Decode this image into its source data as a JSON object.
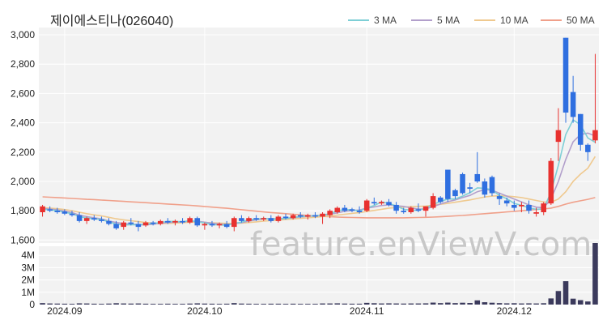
{
  "title": "제이에스티나(026040)",
  "watermark": "feature.enViewV.com",
  "legend": [
    {
      "label": "3 MA",
      "color": "#7ecfd6"
    },
    {
      "label": "5 MA",
      "color": "#b29fcb"
    },
    {
      "label": "10 MA",
      "color": "#efc98f"
    },
    {
      "label": "50 MA",
      "color": "#f0a08a"
    }
  ],
  "chart_data": {
    "type": "candlestick",
    "price_axis": {
      "ylim": [
        1580,
        3050
      ],
      "ticks": [
        1600,
        1800,
        2000,
        2200,
        2400,
        2600,
        2800,
        3000
      ],
      "tick_labels": [
        "1,600",
        "1,800",
        "2,000",
        "2,200",
        "2,400",
        "2,600",
        "2,800",
        "3,000"
      ]
    },
    "volume_axis": {
      "ylim": [
        0,
        5000000
      ],
      "ticks": [
        0,
        1000000,
        2000000,
        3000000,
        4000000
      ],
      "tick_labels": [
        "0",
        "1M",
        "2M",
        "3M",
        "4M"
      ]
    },
    "x_tick_labels": [
      {
        "label": "2024.09",
        "index": 3
      },
      {
        "label": "2024.10",
        "index": 22
      },
      {
        "label": "2024.11",
        "index": 44
      },
      {
        "label": "2024.12",
        "index": 64
      }
    ],
    "ohlc": [
      [
        1790,
        1840,
        1760,
        1830
      ],
      [
        1810,
        1830,
        1790,
        1800
      ],
      [
        1800,
        1820,
        1780,
        1790
      ],
      [
        1795,
        1810,
        1770,
        1780
      ],
      [
        1780,
        1800,
        1760,
        1770
      ],
      [
        1770,
        1790,
        1720,
        1730
      ],
      [
        1730,
        1760,
        1710,
        1750
      ],
      [
        1750,
        1770,
        1730,
        1740
      ],
      [
        1740,
        1760,
        1720,
        1730
      ],
      [
        1730,
        1750,
        1700,
        1710
      ],
      [
        1710,
        1730,
        1670,
        1680
      ],
      [
        1690,
        1730,
        1670,
        1720
      ],
      [
        1720,
        1750,
        1700,
        1710
      ],
      [
        1710,
        1730,
        1660,
        1690
      ],
      [
        1700,
        1730,
        1690,
        1720
      ],
      [
        1720,
        1730,
        1700,
        1710
      ],
      [
        1710,
        1740,
        1700,
        1730
      ],
      [
        1730,
        1750,
        1710,
        1720
      ],
      [
        1720,
        1740,
        1700,
        1730
      ],
      [
        1730,
        1750,
        1710,
        1720
      ],
      [
        1720,
        1760,
        1710,
        1750
      ],
      [
        1750,
        1760,
        1690,
        1700
      ],
      [
        1700,
        1720,
        1670,
        1710
      ],
      [
        1710,
        1730,
        1690,
        1700
      ],
      [
        1700,
        1720,
        1680,
        1710
      ],
      [
        1710,
        1730,
        1680,
        1690
      ],
      [
        1690,
        1760,
        1660,
        1750
      ],
      [
        1750,
        1770,
        1720,
        1730
      ],
      [
        1730,
        1760,
        1720,
        1750
      ],
      [
        1750,
        1770,
        1730,
        1740
      ],
      [
        1740,
        1760,
        1730,
        1750
      ],
      [
        1750,
        1770,
        1720,
        1730
      ],
      [
        1730,
        1770,
        1720,
        1760
      ],
      [
        1760,
        1780,
        1740,
        1750
      ],
      [
        1750,
        1780,
        1740,
        1770
      ],
      [
        1770,
        1790,
        1750,
        1760
      ],
      [
        1760,
        1780,
        1740,
        1770
      ],
      [
        1770,
        1790,
        1750,
        1760
      ],
      [
        1760,
        1790,
        1710,
        1780
      ],
      [
        1770,
        1810,
        1750,
        1800
      ],
      [
        1790,
        1830,
        1780,
        1820
      ],
      [
        1820,
        1840,
        1790,
        1800
      ],
      [
        1810,
        1820,
        1790,
        1800
      ],
      [
        1800,
        1830,
        1780,
        1790
      ],
      [
        1800,
        1880,
        1790,
        1870
      ],
      [
        1860,
        1890,
        1840,
        1850
      ],
      [
        1850,
        1870,
        1840,
        1860
      ],
      [
        1860,
        1880,
        1830,
        1840
      ],
      [
        1840,
        1860,
        1780,
        1800
      ],
      [
        1800,
        1820,
        1780,
        1790
      ],
      [
        1790,
        1830,
        1780,
        1820
      ],
      [
        1810,
        1850,
        1790,
        1800
      ],
      [
        1800,
        1830,
        1760,
        1830
      ],
      [
        1820,
        1920,
        1810,
        1900
      ],
      [
        1890,
        1900,
        1850,
        1860
      ],
      [
        2080,
        2080,
        1860,
        1880
      ],
      [
        1940,
        1950,
        1880,
        1900
      ],
      [
        2050,
        2060,
        1910,
        1920
      ],
      [
        1960,
        1990,
        1920,
        1950
      ],
      [
        2050,
        2200,
        1990,
        2000
      ],
      [
        2000,
        2020,
        1890,
        1910
      ],
      [
        2030,
        2040,
        1900,
        1920
      ],
      [
        1900,
        1920,
        1840,
        1880
      ],
      [
        1870,
        1890,
        1830,
        1850
      ],
      [
        1840,
        1870,
        1800,
        1820
      ],
      [
        1830,
        1860,
        1790,
        1840
      ],
      [
        1840,
        1870,
        1780,
        1800
      ],
      [
        1780,
        1820,
        1760,
        1790
      ],
      [
        1790,
        1860,
        1770,
        1850
      ],
      [
        1850,
        2160,
        1840,
        2140
      ],
      [
        2270,
        2500,
        2140,
        2350
      ],
      [
        2980,
        2980,
        2400,
        2470
      ],
      [
        2610,
        2720,
        2400,
        2440
      ],
      [
        2460,
        2460,
        2210,
        2250
      ],
      [
        2250,
        2260,
        2140,
        2200
      ],
      [
        2280,
        2870,
        2260,
        2350
      ]
    ],
    "ma3": [
      1810,
      1806,
      1800,
      1790,
      1780,
      1760,
      1750,
      1745,
      1740,
      1725,
      1708,
      1703,
      1705,
      1705,
      1708,
      1712,
      1720,
      1727,
      1727,
      1725,
      1733,
      1725,
      1718,
      1705,
      1705,
      1700,
      1715,
      1722,
      1740,
      1742,
      1748,
      1742,
      1745,
      1746,
      1756,
      1760,
      1765,
      1765,
      1770,
      1780,
      1800,
      1807,
      1807,
      1797,
      1820,
      1836,
      1860,
      1850,
      1833,
      1810,
      1803,
      1803,
      1817,
      1843,
      1863,
      1880,
      1880,
      1900,
      1923,
      1956,
      1953,
      1943,
      1903,
      1883,
      1850,
      1837,
      1820,
      1810,
      1813,
      1927,
      2110,
      2320,
      2420,
      2387,
      2297,
      2267
    ],
    "ma5": [
      1815,
      1812,
      1806,
      1798,
      1788,
      1770,
      1760,
      1752,
      1745,
      1730,
      1720,
      1712,
      1710,
      1705,
      1704,
      1708,
      1715,
      1720,
      1722,
      1725,
      1730,
      1728,
      1722,
      1715,
      1710,
      1705,
      1712,
      1718,
      1730,
      1738,
      1745,
      1745,
      1745,
      1748,
      1752,
      1758,
      1762,
      1766,
      1768,
      1776,
      1786,
      1796,
      1802,
      1805,
      1818,
      1826,
      1836,
      1840,
      1834,
      1830,
      1820,
      1812,
      1812,
      1828,
      1846,
      1862,
      1874,
      1890,
      1905,
      1930,
      1945,
      1940,
      1920,
      1900,
      1880,
      1860,
      1840,
      1825,
      1820,
      1880,
      2000,
      2150,
      2270,
      2320,
      2330,
      2310
    ],
    "ma10": [
      1820,
      1818,
      1814,
      1808,
      1800,
      1790,
      1780,
      1772,
      1765,
      1755,
      1745,
      1738,
      1732,
      1726,
      1720,
      1716,
      1714,
      1714,
      1716,
      1718,
      1722,
      1722,
      1720,
      1718,
      1716,
      1714,
      1714,
      1716,
      1720,
      1724,
      1730,
      1733,
      1736,
      1740,
      1744,
      1748,
      1752,
      1756,
      1760,
      1764,
      1770,
      1776,
      1782,
      1788,
      1795,
      1802,
      1810,
      1818,
      1822,
      1825,
      1828,
      1830,
      1832,
      1838,
      1844,
      1850,
      1858,
      1866,
      1874,
      1884,
      1894,
      1900,
      1902,
      1900,
      1896,
      1890,
      1880,
      1870,
      1860,
      1858,
      1880,
      1930,
      2000,
      2050,
      2090,
      2170
    ],
    "ma50": [
      1895,
      1892,
      1890,
      1887,
      1884,
      1881,
      1878,
      1876,
      1873,
      1870,
      1867,
      1864,
      1861,
      1858,
      1855,
      1852,
      1849,
      1846,
      1843,
      1840,
      1837,
      1833,
      1829,
      1825,
      1821,
      1817,
      1812,
      1807,
      1802,
      1797,
      1792,
      1788,
      1784,
      1780,
      1776,
      1772,
      1768,
      1765,
      1762,
      1759,
      1757,
      1755,
      1754,
      1753,
      1752,
      1752,
      1752,
      1752,
      1752,
      1752,
      1753,
      1754,
      1755,
      1757,
      1759,
      1762,
      1765,
      1768,
      1772,
      1776,
      1780,
      1784,
      1788,
      1792,
      1796,
      1800,
      1804,
      1808,
      1812,
      1818,
      1830,
      1845,
      1858,
      1868,
      1878,
      1890
    ],
    "volume": [
      120000,
      90000,
      80000,
      70000,
      60000,
      100000,
      90000,
      70000,
      60000,
      80000,
      110000,
      90000,
      80000,
      90000,
      70000,
      60000,
      60000,
      70000,
      60000,
      60000,
      80000,
      100000,
      80000,
      70000,
      60000,
      70000,
      120000,
      80000,
      70000,
      60000,
      60000,
      70000,
      70000,
      60000,
      70000,
      60000,
      60000,
      60000,
      90000,
      90000,
      100000,
      80000,
      70000,
      70000,
      140000,
      110000,
      90000,
      100000,
      90000,
      80000,
      90000,
      90000,
      100000,
      160000,
      120000,
      160000,
      120000,
      150000,
      130000,
      340000,
      190000,
      150000,
      120000,
      100000,
      110000,
      90000,
      100000,
      90000,
      110000,
      500000,
      1100000,
      1900000,
      480000,
      360000,
      250000,
      5000000
    ]
  }
}
